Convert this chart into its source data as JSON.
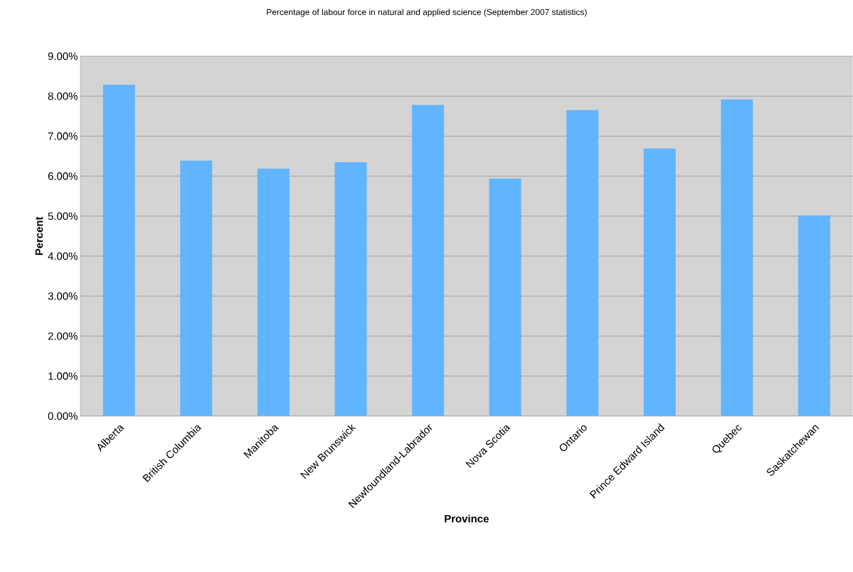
{
  "chart_data": {
    "type": "bar",
    "title": "Percentage of labour force in natural and applied science (September 2007 statistics)",
    "xlabel": "Province",
    "ylabel": "Percent",
    "categories": [
      "Alberta",
      "British Columbia",
      "Manitoba",
      "New Brunswick",
      "Newfoundland-Labrador",
      "Nova Scotia",
      "Ontario",
      "Prince Edward Island",
      "Quebec",
      "Saskatchewan"
    ],
    "values": [
      8.29,
      6.39,
      6.19,
      6.35,
      7.78,
      5.94,
      7.65,
      6.69,
      7.92,
      5.02
    ],
    "color": "#61b5ff",
    "ylim": [
      0,
      9
    ],
    "yticks": [
      {
        "value": 0,
        "label": "0.00%"
      },
      {
        "value": 1,
        "label": "1.00%"
      },
      {
        "value": 2,
        "label": "2.00%"
      },
      {
        "value": 3,
        "label": "3.00%"
      },
      {
        "value": 4,
        "label": "4.00%"
      },
      {
        "value": 5,
        "label": "5.00%"
      },
      {
        "value": 6,
        "label": "6.00%"
      },
      {
        "value": 7,
        "label": "7.00%"
      },
      {
        "value": 8,
        "label": "8.00%"
      },
      {
        "value": 9,
        "label": "9.00%"
      }
    ],
    "grid": "y"
  }
}
